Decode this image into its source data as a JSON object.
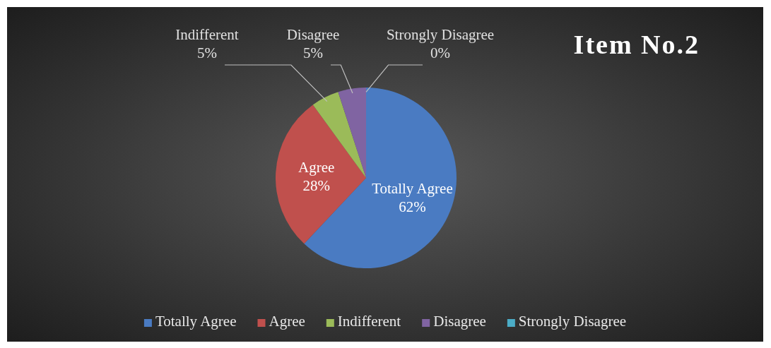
{
  "chart_data": {
    "type": "pie",
    "title": "Item No.2",
    "categories": [
      "Totally Agree",
      "Agree",
      "Indifferent",
      "Disagree",
      "Strongly Disagree"
    ],
    "values": [
      62,
      28,
      5,
      5,
      0
    ],
    "value_labels": [
      "62%",
      "28%",
      "5%",
      "5%",
      "0%"
    ],
    "colors": [
      "#4a7bc2",
      "#c0504d",
      "#9bbb59",
      "#8064a2",
      "#4bacc6"
    ],
    "legend": "bottom"
  }
}
